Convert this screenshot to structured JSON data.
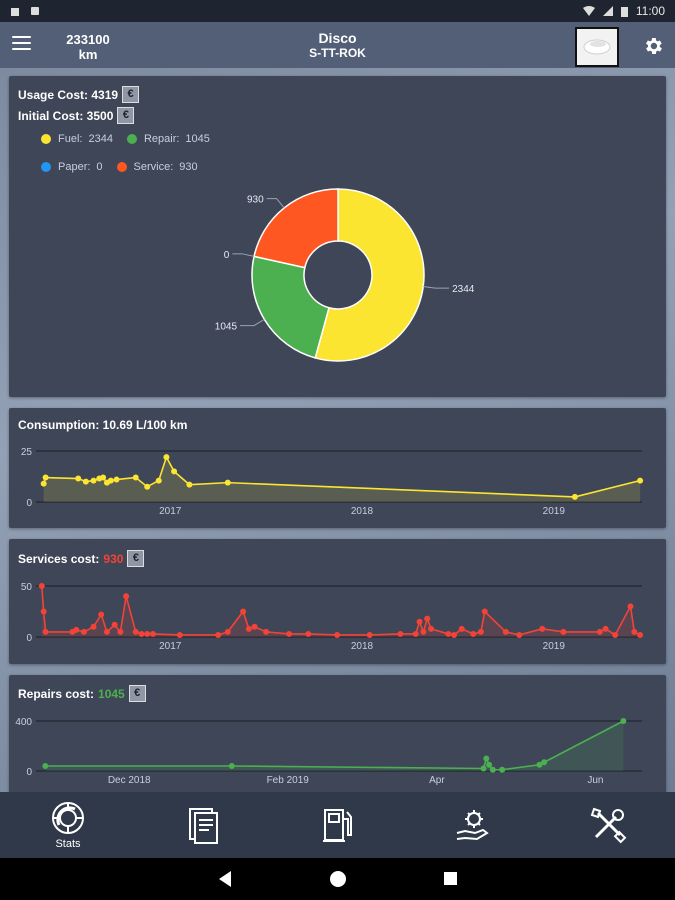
{
  "status_bar": {
    "time": "11:00"
  },
  "app_bar": {
    "odometer_value": "233100",
    "odometer_unit": "km",
    "vehicle_name": "Disco",
    "plate": "S-TT-ROK"
  },
  "usage_card": {
    "usage_cost_label": "Usage Cost: 4319",
    "initial_cost_label": "Initial Cost: 3500",
    "currency_symbol": "€",
    "legend": [
      {
        "label": "Fuel:",
        "value": "2344",
        "color": "#fbe531"
      },
      {
        "label": "Repair:",
        "value": "1045",
        "color": "#4caf50"
      },
      {
        "label": "Paper:",
        "value": "0",
        "color": "#2196f3"
      },
      {
        "label": "Service:",
        "value": "930",
        "color": "#ff5722"
      }
    ],
    "chart_data": {
      "type": "pie",
      "categories": [
        "Fuel",
        "Repair",
        "Paper",
        "Service"
      ],
      "values": [
        2344,
        1045,
        0,
        930
      ],
      "colors": [
        "#fbe531",
        "#4caf50",
        "#2196f3",
        "#ff5722"
      ],
      "slice_labels": [
        "2344",
        "1045",
        "0",
        "930"
      ]
    }
  },
  "consumption_card": {
    "title": "Consumption: 10.69 L/100 km",
    "chart_data": {
      "type": "area",
      "color": "#fbe531",
      "xlim": [
        2016.3,
        2019.46
      ],
      "ylim": [
        0,
        25
      ],
      "yticks": [
        0,
        25
      ],
      "xticks": [
        {
          "x": 2017,
          "label": "2017"
        },
        {
          "x": 2018,
          "label": "2018"
        },
        {
          "x": 2019,
          "label": "2019"
        }
      ],
      "x": [
        2016.34,
        2016.35,
        2016.52,
        2016.56,
        2016.6,
        2016.63,
        2016.65,
        2016.67,
        2016.69,
        2016.72,
        2016.82,
        2016.88,
        2016.94,
        2016.98,
        2017.02,
        2017.1,
        2017.3,
        2019.11,
        2019.45
      ],
      "values": [
        9,
        12,
        11.5,
        10,
        10.5,
        11.5,
        12,
        9.5,
        10.5,
        11,
        12,
        7.5,
        10.5,
        22,
        15,
        8.5,
        9.5,
        2.5,
        10.5
      ]
    }
  },
  "services_card": {
    "title_prefix": "Services cost:",
    "value": "930",
    "currency_symbol": "€",
    "chart_data": {
      "type": "area",
      "color": "#f44336",
      "xlim": [
        2016.3,
        2019.46
      ],
      "ylim": [
        0,
        50
      ],
      "yticks": [
        0,
        50
      ],
      "xticks": [
        {
          "x": 2017,
          "label": "2017"
        },
        {
          "x": 2018,
          "label": "2018"
        },
        {
          "x": 2019,
          "label": "2019"
        }
      ],
      "x": [
        2016.33,
        2016.34,
        2016.35,
        2016.49,
        2016.51,
        2016.55,
        2016.6,
        2016.64,
        2016.67,
        2016.71,
        2016.74,
        2016.77,
        2016.82,
        2016.85,
        2016.88,
        2016.91,
        2017.05,
        2017.25,
        2017.3,
        2017.38,
        2017.41,
        2017.44,
        2017.5,
        2017.62,
        2017.72,
        2017.87,
        2018.04,
        2018.2,
        2018.28,
        2018.3,
        2018.32,
        2018.34,
        2018.36,
        2018.45,
        2018.48,
        2018.52,
        2018.58,
        2018.62,
        2018.64,
        2018.75,
        2018.82,
        2018.94,
        2019.05,
        2019.24,
        2019.27,
        2019.32,
        2019.4,
        2019.42,
        2019.45
      ],
      "values": [
        50,
        25,
        5,
        5,
        7,
        5,
        10,
        22,
        5,
        12,
        5,
        40,
        5,
        3,
        3,
        3,
        2,
        2,
        5,
        25,
        8,
        10,
        5,
        3,
        3,
        2,
        2,
        3,
        3,
        15,
        5,
        18,
        8,
        3,
        2,
        8,
        3,
        5,
        25,
        5,
        2,
        8,
        5,
        5,
        8,
        2,
        30,
        5,
        2
      ]
    }
  },
  "repairs_card": {
    "title_prefix": "Repairs cost:",
    "value": "1045",
    "currency_symbol": "€",
    "chart_data": {
      "type": "area",
      "color": "#4caf50",
      "xlim": [
        2018.82,
        2019.47
      ],
      "ylim": [
        0,
        400
      ],
      "yticks": [
        0,
        400
      ],
      "xticks": [
        {
          "x": 2018.92,
          "label": "Dec 2018"
        },
        {
          "x": 2019.09,
          "label": "Feb 2019"
        },
        {
          "x": 2019.25,
          "label": "Apr"
        },
        {
          "x": 2019.42,
          "label": "Jun"
        }
      ],
      "x": [
        2018.83,
        2019.03,
        2019.3,
        2019.303,
        2019.306,
        2019.31,
        2019.32,
        2019.36,
        2019.365,
        2019.45
      ],
      "values": [
        40,
        40,
        20,
        100,
        50,
        10,
        10,
        50,
        70,
        400
      ]
    }
  },
  "bottom_nav": [
    {
      "label": "Stats",
      "icon": "stats-icon"
    },
    {
      "label": "",
      "icon": "documents-icon"
    },
    {
      "label": "",
      "icon": "fuel-pump-icon"
    },
    {
      "label": "",
      "icon": "service-hand-gear-icon"
    },
    {
      "label": "",
      "icon": "repair-tools-icon"
    }
  ]
}
